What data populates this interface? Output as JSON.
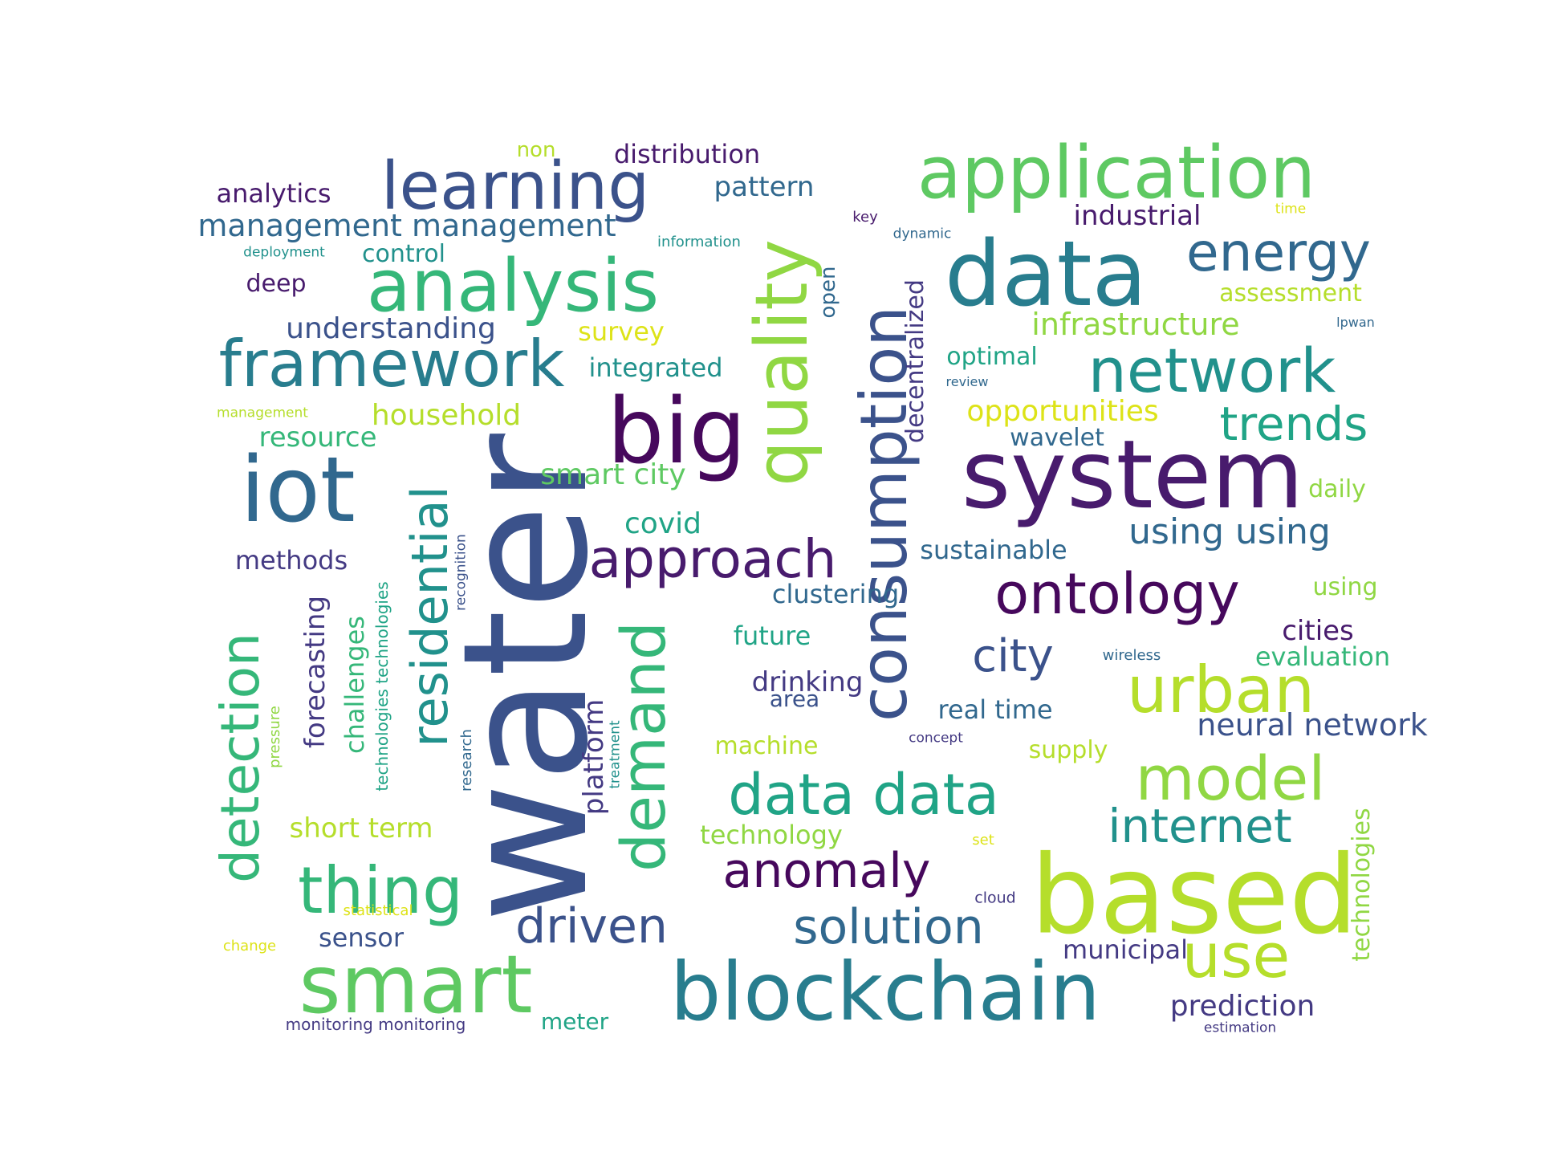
{
  "palette": {
    "dark_purple": "#46085c",
    "purple": "#481b6d",
    "indigo": "#443a83",
    "blue": "#3b528b",
    "slate": "#31688e",
    "teal": "#287d8e",
    "teal2": "#21918c",
    "green_teal": "#20a486",
    "green": "#35b779",
    "light_green": "#5ec962",
    "lime": "#90d743",
    "yellow_green": "#b5de2b",
    "yellow": "#dde318",
    "bright_yellow": "#fde725"
  },
  "words": [
    {
      "text": "water",
      "color": "#3b528b"
    },
    {
      "text": "system",
      "color": "#481b6d"
    },
    {
      "text": "based",
      "color": "#b5de2b"
    },
    {
      "text": "blockchain",
      "color": "#287d8e"
    },
    {
      "text": "iot",
      "color": "#31688e"
    },
    {
      "text": "big",
      "color": "#46085c"
    },
    {
      "text": "data",
      "color": "#287d8e"
    },
    {
      "text": "application",
      "color": "#5ec962"
    },
    {
      "text": "smart",
      "color": "#5ec962"
    },
    {
      "text": "quality",
      "color": "#90d743"
    },
    {
      "text": "consumption",
      "color": "#3b528b"
    },
    {
      "text": "analysis",
      "color": "#35b779"
    },
    {
      "text": "learning",
      "color": "#3b528b"
    },
    {
      "text": "framework",
      "color": "#287d8e"
    },
    {
      "text": "network",
      "color": "#21918c"
    },
    {
      "text": "demand",
      "color": "#35b779"
    },
    {
      "text": "detection",
      "color": "#35b779"
    },
    {
      "text": "residential",
      "color": "#21918c"
    },
    {
      "text": "ontology",
      "color": "#46085c"
    },
    {
      "text": "urban",
      "color": "#b5de2b"
    },
    {
      "text": "data data",
      "color": "#20a486"
    },
    {
      "text": "approach",
      "color": "#481b6d"
    },
    {
      "text": "model",
      "color": "#90d743"
    },
    {
      "text": "thing",
      "color": "#35b779"
    },
    {
      "text": "energy",
      "color": "#31688e"
    },
    {
      "text": "use",
      "color": "#b5de2b"
    },
    {
      "text": "internet",
      "color": "#21918c"
    },
    {
      "text": "driven",
      "color": "#3b528b"
    },
    {
      "text": "solution",
      "color": "#31688e"
    },
    {
      "text": "anomaly",
      "color": "#46085c"
    },
    {
      "text": "trends",
      "color": "#20a486"
    },
    {
      "text": "city",
      "color": "#3b528b"
    },
    {
      "text": "using using",
      "color": "#31688e"
    },
    {
      "text": "management management",
      "color": "#31688e"
    },
    {
      "text": "prediction",
      "color": "#443a83"
    },
    {
      "text": "infrastructure",
      "color": "#90d743"
    },
    {
      "text": "household",
      "color": "#b5de2b"
    },
    {
      "text": "neural network",
      "color": "#3b528b"
    },
    {
      "text": "distribution",
      "color": "#481b6d"
    },
    {
      "text": "industrial",
      "color": "#481b6d"
    },
    {
      "text": "opportunities",
      "color": "#dde318"
    },
    {
      "text": "forecasting",
      "color": "#443a83"
    },
    {
      "text": "challenges",
      "color": "#35b779"
    },
    {
      "text": "short term",
      "color": "#b5de2b"
    },
    {
      "text": "smart city",
      "color": "#5ec962"
    },
    {
      "text": "understanding",
      "color": "#3b528b"
    },
    {
      "text": "decentralized",
      "color": "#443a83"
    },
    {
      "text": "platform",
      "color": "#443a83"
    },
    {
      "text": "drinking",
      "color": "#443a83"
    },
    {
      "text": "technology",
      "color": "#90d743"
    },
    {
      "text": "resource",
      "color": "#35b779"
    },
    {
      "text": "integrated",
      "color": "#21918c"
    },
    {
      "text": "pattern",
      "color": "#31688e"
    },
    {
      "text": "analytics",
      "color": "#481b6d"
    },
    {
      "text": "clustering",
      "color": "#31688e"
    },
    {
      "text": "sustainable",
      "color": "#31688e"
    },
    {
      "text": "evaluation",
      "color": "#35b779"
    },
    {
      "text": "municipal",
      "color": "#443a83"
    },
    {
      "text": "real time",
      "color": "#31688e"
    },
    {
      "text": "cities",
      "color": "#481b6d"
    },
    {
      "text": "covid",
      "color": "#20a486"
    },
    {
      "text": "wavelet",
      "color": "#31688e"
    },
    {
      "text": "optimal",
      "color": "#20a486"
    },
    {
      "text": "control",
      "color": "#21918c"
    },
    {
      "text": "methods",
      "color": "#443a83"
    },
    {
      "text": "future",
      "color": "#20a486"
    },
    {
      "text": "survey",
      "color": "#dde318"
    },
    {
      "text": "sensor",
      "color": "#3b528b"
    },
    {
      "text": "machine",
      "color": "#b5de2b"
    },
    {
      "text": "supply",
      "color": "#b5de2b"
    },
    {
      "text": "assessment",
      "color": "#b5de2b"
    },
    {
      "text": "technologies",
      "color": "#90d743"
    },
    {
      "text": "meter",
      "color": "#20a486"
    },
    {
      "text": "deep",
      "color": "#481b6d"
    },
    {
      "text": "daily",
      "color": "#90d743"
    },
    {
      "text": "using",
      "color": "#90d743"
    },
    {
      "text": "open",
      "color": "#31688e"
    },
    {
      "text": "area",
      "color": "#3b528b"
    },
    {
      "text": "non",
      "color": "#b5de2b"
    },
    {
      "text": "technologies technologies",
      "color": "#20a486"
    },
    {
      "text": "recognition",
      "color": "#3b528b"
    },
    {
      "text": "research",
      "color": "#31688e"
    },
    {
      "text": "pressure",
      "color": "#90d743"
    },
    {
      "text": "treatment",
      "color": "#21918c"
    },
    {
      "text": "monitoring monitoring",
      "color": "#443a83"
    },
    {
      "text": "information",
      "color": "#21918c"
    },
    {
      "text": "deployment",
      "color": "#21918c"
    },
    {
      "text": "management",
      "color": "#b5de2b"
    },
    {
      "text": "statistical",
      "color": "#dde318"
    },
    {
      "text": "change",
      "color": "#dde318"
    },
    {
      "text": "dynamic",
      "color": "#31688e"
    },
    {
      "text": "key",
      "color": "#481b6d"
    },
    {
      "text": "time",
      "color": "#dde318"
    },
    {
      "text": "lpwan",
      "color": "#31688e"
    },
    {
      "text": "review",
      "color": "#31688e"
    },
    {
      "text": "wireless",
      "color": "#31688e"
    },
    {
      "text": "concept",
      "color": "#443a83"
    },
    {
      "text": "cloud",
      "color": "#443a83"
    },
    {
      "text": "set",
      "color": "#dde318"
    },
    {
      "text": "estimation",
      "color": "#443a83"
    }
  ]
}
